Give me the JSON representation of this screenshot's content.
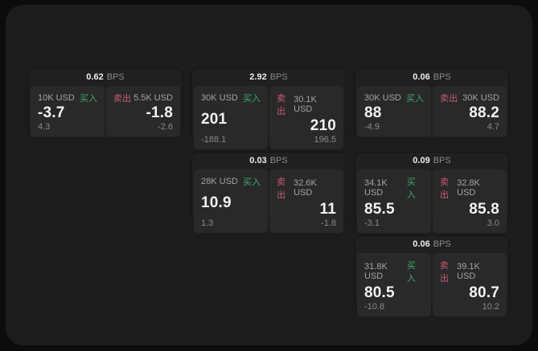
{
  "labels": {
    "bps_unit": "BPS",
    "buy": "买入",
    "sell": "卖出"
  },
  "colors": {
    "buy": "#3fa968",
    "sell": "#c85a6e",
    "background": "#0c0c0c",
    "panel": "#1c1c1d",
    "card": "#202021",
    "subpanel": "#29292a"
  },
  "cards": [
    {
      "bps": "0.62",
      "buy": {
        "notional": "10K USD",
        "price": "-3.7",
        "sub": "4.3"
      },
      "sell": {
        "notional": "5.5K USD",
        "price": "-1.8",
        "sub": "-2.6"
      }
    },
    {
      "bps": "2.92",
      "buy": {
        "notional": "30K USD",
        "price": "201",
        "sub": "-188.1"
      },
      "sell": {
        "notional": "30.1K USD",
        "price": "210",
        "sub": "196.5"
      }
    },
    {
      "bps": "0.06",
      "buy": {
        "notional": "30K USD",
        "price": "88",
        "sub": "-4.9"
      },
      "sell": {
        "notional": "30K USD",
        "price": "88.2",
        "sub": "4.7"
      }
    },
    {
      "bps": "0.03",
      "buy": {
        "notional": "28K USD",
        "price": "10.9",
        "sub": "1.3"
      },
      "sell": {
        "notional": "32.6K USD",
        "price": "11",
        "sub": "-1.8"
      }
    },
    {
      "bps": "0.09",
      "buy": {
        "notional": "34.1K USD",
        "price": "85.5",
        "sub": "-3.1"
      },
      "sell": {
        "notional": "32.8K USD",
        "price": "85.8",
        "sub": "3.0"
      }
    },
    {
      "bps": "0.06",
      "buy": {
        "notional": "31.8K USD",
        "price": "80.5",
        "sub": "-10.8"
      },
      "sell": {
        "notional": "39.1K USD",
        "price": "80.7",
        "sub": "10.2"
      }
    }
  ]
}
